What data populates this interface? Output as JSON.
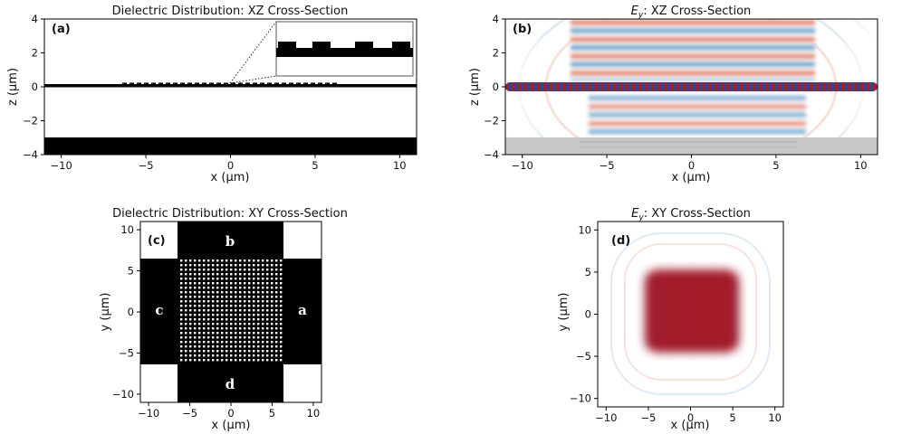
{
  "figure": {
    "panels": [
      {
        "id": "a",
        "label": "(a)",
        "title": "Dielectric Distribution: XZ Cross-Section",
        "xlabel": "x (μm)",
        "ylabel": "z (μm)"
      },
      {
        "id": "b",
        "label": "(b)",
        "title_var": "E",
        "title_sub": "y",
        "title_rest": ": XZ Cross-Section",
        "xlabel": "x (μm)",
        "ylabel": "z (μm)"
      },
      {
        "id": "c",
        "label": "(c)",
        "title": "Dielectric Distribution: XY Cross-Section",
        "xlabel": "x (μm)",
        "ylabel": "y (μm)",
        "ports": [
          "a",
          "b",
          "c",
          "d"
        ]
      },
      {
        "id": "d",
        "label": "(d)",
        "title_var": "E",
        "title_sub": "y",
        "title_rest": ": XY Cross-Section",
        "xlabel": "x (μm)",
        "ylabel": "y (μm)"
      }
    ]
  },
  "chart_data": [
    {
      "type": "heatmap",
      "panel": "a",
      "title": "Dielectric Distribution: XZ Cross-Section",
      "xlabel": "x (μm)",
      "ylabel": "z (μm)",
      "xlim": [
        -11,
        11
      ],
      "ylim": [
        -4,
        4
      ],
      "xticks": [
        -10,
        -5,
        0,
        5,
        10
      ],
      "yticks": [
        -4,
        -2,
        0,
        2,
        4
      ],
      "colormap": "binary",
      "structures": [
        {
          "name": "waveguide layer",
          "z": [
            -0.15,
            0.15
          ],
          "x": [
            -11,
            11
          ]
        },
        {
          "name": "grating",
          "x": [
            -6.3,
            6.3
          ],
          "z_top": 0.15
        },
        {
          "name": "substrate",
          "z": [
            -4,
            -3.1
          ],
          "x": [
            -11,
            11
          ]
        }
      ],
      "inset": {
        "description": "zoom of grating teeth"
      }
    },
    {
      "type": "heatmap",
      "panel": "b",
      "title": "Ey: XZ Cross-Section",
      "xlabel": "x (μm)",
      "ylabel": "z (μm)",
      "xlim": [
        -11,
        11
      ],
      "ylim": [
        -4,
        4
      ],
      "xticks": [
        -10,
        -5,
        0,
        5,
        10
      ],
      "yticks": [
        -4,
        -2,
        0,
        2,
        4
      ],
      "colormap": "RdBu",
      "field": {
        "guided_mode_z": 0,
        "radiation_extent_x": [
          -6,
          6
        ],
        "substrate_top_z": -3.1
      }
    },
    {
      "type": "heatmap",
      "panel": "c",
      "title": "Dielectric Distribution: XY Cross-Section",
      "xlabel": "x (μm)",
      "ylabel": "y (μm)",
      "xlim": [
        -11,
        11
      ],
      "ylim": [
        -11,
        11
      ],
      "xticks": [
        -10,
        -5,
        0,
        5,
        10
      ],
      "yticks": [
        -10,
        -5,
        0,
        5,
        10
      ],
      "colormap": "binary",
      "structures": [
        {
          "name": "cross waveguide horizontal",
          "x": [
            -11,
            11
          ],
          "y": [
            -6.3,
            6.3
          ]
        },
        {
          "name": "cross waveguide vertical",
          "x": [
            -6.3,
            6.3
          ],
          "y": [
            -11,
            11
          ]
        },
        {
          "name": "hole array",
          "x": [
            -6.1,
            6.1
          ],
          "y": [
            -6.1,
            6.1
          ],
          "n": 24
        }
      ],
      "ports": [
        "a",
        "b",
        "c",
        "d"
      ]
    },
    {
      "type": "heatmap",
      "panel": "d",
      "title": "Ey: XY Cross-Section",
      "xlabel": "x (μm)",
      "ylabel": "y (μm)",
      "xlim": [
        -11,
        11
      ],
      "ylim": [
        -11,
        11
      ],
      "xticks": [
        -10,
        -5,
        0,
        5,
        10
      ],
      "yticks": [
        -10,
        -5,
        0,
        5,
        10
      ],
      "colormap": "RdBu",
      "field": {
        "hotspot_x": [
          -5.5,
          5.5
        ],
        "hotspot_y": [
          -5,
          5
        ]
      }
    }
  ]
}
